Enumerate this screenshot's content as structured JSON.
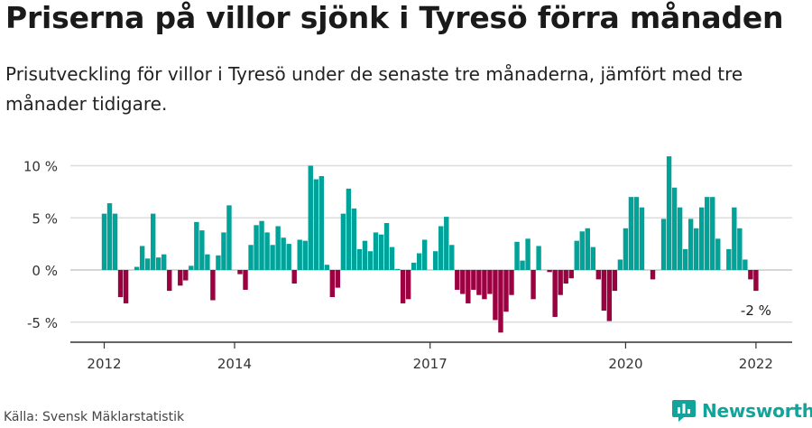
{
  "title": "Priserna på villor sjönk i Tyresö förra månaden",
  "subtitle": "Prisutveckling för villor i Tyresö under de senaste tre månaderna, jämfört med tre månader tidigare.",
  "source": "Källa: Svensk Mäklarstatistik",
  "brand": "Newsworthy",
  "colors": {
    "positive": "#00a39a",
    "negative": "#9b0041",
    "brand": "#12a39a",
    "grid": "#dddddd",
    "axis": "#333333"
  },
  "chart_data": {
    "type": "bar",
    "ylim": [
      -6.5,
      11
    ],
    "y_ticks": [
      10,
      5,
      0,
      -5
    ],
    "y_tick_labels": [
      "10 %",
      "5 %",
      "0 %",
      "-5 %"
    ],
    "x_ticks": [
      {
        "index": 0,
        "label": "2012"
      },
      {
        "index": 24,
        "label": "2014"
      },
      {
        "index": 60,
        "label": "2017"
      },
      {
        "index": 96,
        "label": "2020"
      },
      {
        "index": 120,
        "label": "2022"
      }
    ],
    "annotation": {
      "index": 120,
      "label": "-2 %"
    },
    "values": [
      5.4,
      6.4,
      5.4,
      -2.6,
      -3.2,
      0,
      0.3,
      2.3,
      1.1,
      5.4,
      1.2,
      1.5,
      -2.0,
      0,
      -1.5,
      -1.0,
      0.4,
      4.6,
      3.8,
      1.5,
      -2.9,
      1.4,
      3.6,
      6.2,
      0,
      -0.4,
      -1.9,
      2.4,
      4.3,
      4.7,
      3.6,
      2.4,
      4.2,
      3.1,
      2.5,
      -1.3,
      2.9,
      2.8,
      10.0,
      8.7,
      9.0,
      0.5,
      -2.6,
      -1.7,
      5.4,
      7.8,
      5.9,
      2.0,
      2.8,
      1.8,
      3.6,
      3.4,
      4.5,
      2.2,
      0.1,
      -3.2,
      -2.8,
      0.7,
      1.6,
      2.9,
      0,
      1.8,
      4.2,
      5.1,
      2.4,
      -1.9,
      -2.3,
      -3.2,
      -1.9,
      -2.4,
      -2.8,
      -2.3,
      -4.8,
      -6.0,
      -4.0,
      -2.4,
      2.7,
      0.9,
      3.0,
      -2.8,
      2.3,
      0,
      -0.2,
      -4.5,
      -2.4,
      -1.3,
      -0.8,
      2.8,
      3.7,
      4.0,
      2.2,
      -0.9,
      -3.9,
      -4.9,
      -2.0,
      1.0,
      4.0,
      7.0,
      7.0,
      6.0,
      0,
      -0.9,
      0,
      4.9,
      10.9,
      7.9,
      6.0,
      2.0,
      4.9,
      4.0,
      6.0,
      7.0,
      7.0,
      3.0,
      0,
      2.0,
      6.0,
      4.0,
      1.0,
      -0.9,
      -2.0
    ]
  }
}
